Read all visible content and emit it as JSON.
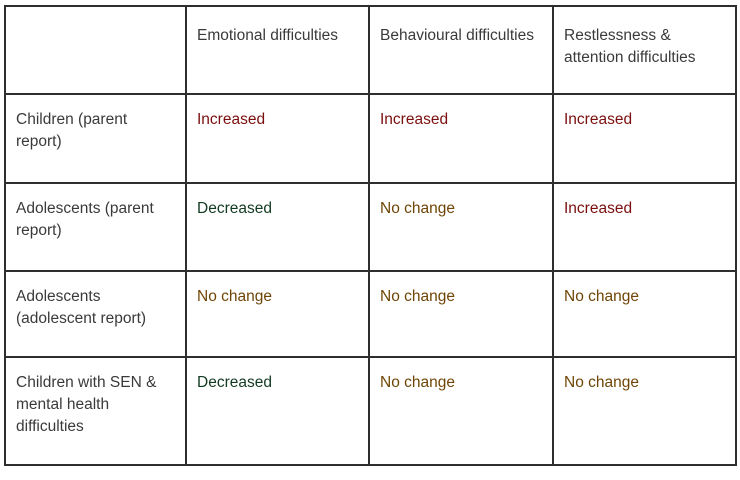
{
  "colors": {
    "increased_bg": "#fe0000",
    "increased_text": "#7b0e0e",
    "decreased_bg": "#00a651",
    "decreased_text": "#123a22",
    "nochange_bg": "#ffc20e",
    "nochange_text": "#6f4506",
    "grid_border": "#2e2e2e",
    "header_text": "#3a3a3a",
    "background": "#ffffff"
  },
  "chart_data": {
    "type": "table",
    "title": "",
    "columns": [
      "",
      "Emotional difficulties",
      "Behavioural difficulties",
      "Restlessness & attention difficulties"
    ],
    "rows": [
      {
        "label": "Children (parent report)",
        "cells": [
          {
            "text": "Increased",
            "status": "increased"
          },
          {
            "text": "Increased",
            "status": "increased"
          },
          {
            "text": "Increased",
            "status": "increased"
          }
        ]
      },
      {
        "label": "Adolescents (parent report)",
        "cells": [
          {
            "text": "Decreased",
            "status": "decreased"
          },
          {
            "text": "No change",
            "status": "nochange"
          },
          {
            "text": "Increased",
            "status": "increased"
          }
        ]
      },
      {
        "label": "Adolescents (adolescent report)",
        "cells": [
          {
            "text": "No change",
            "status": "nochange"
          },
          {
            "text": "No change",
            "status": "nochange"
          },
          {
            "text": "No change",
            "status": "nochange"
          }
        ]
      },
      {
        "label": "Children with SEN & mental health difficulties",
        "cells": [
          {
            "text": "Decreased",
            "status": "decreased"
          },
          {
            "text": "No change",
            "status": "nochange"
          },
          {
            "text": "No change",
            "status": "nochange"
          }
        ]
      }
    ],
    "color_coding": {
      "Increased": "#fe0000",
      "Decreased": "#00a651",
      "No change": "#ffc20e"
    },
    "layout_hints": {
      "grid": true,
      "legend": false,
      "cell_text_align": "top-left"
    }
  }
}
